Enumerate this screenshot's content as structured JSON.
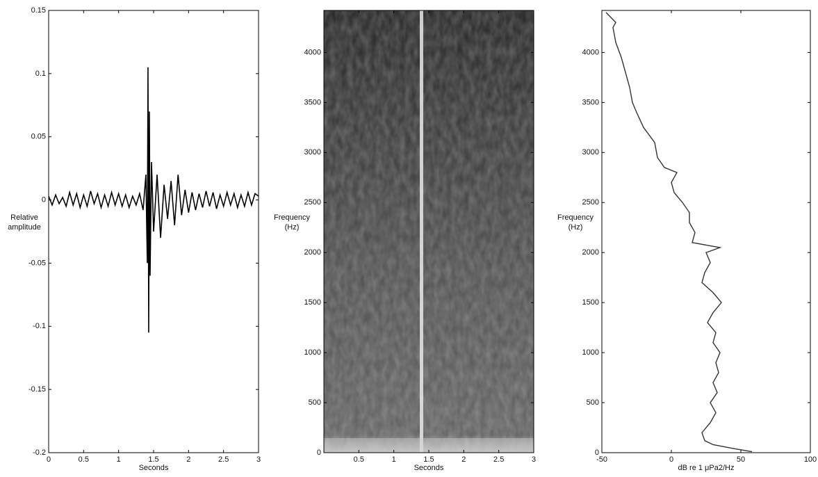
{
  "chart_data": [
    {
      "type": "line",
      "xlabel": "Seconds",
      "ylabel": [
        "Relative",
        "amplitude"
      ],
      "x": [
        0,
        0.05,
        0.1,
        0.15,
        0.2,
        0.25,
        0.3,
        0.35,
        0.4,
        0.45,
        0.5,
        0.55,
        0.6,
        0.65,
        0.7,
        0.75,
        0.8,
        0.85,
        0.9,
        0.95,
        1.0,
        1.05,
        1.1,
        1.15,
        1.2,
        1.25,
        1.3,
        1.35,
        1.39,
        1.41,
        1.42,
        1.43,
        1.44,
        1.45,
        1.47,
        1.5,
        1.55,
        1.6,
        1.65,
        1.7,
        1.75,
        1.8,
        1.85,
        1.9,
        1.95,
        2.0,
        2.05,
        2.1,
        2.15,
        2.2,
        2.25,
        2.3,
        2.35,
        2.4,
        2.45,
        2.5,
        2.55,
        2.6,
        2.65,
        2.7,
        2.75,
        2.8,
        2.85,
        2.9,
        2.95,
        3.0
      ],
      "values": [
        0.003,
        -0.004,
        0.004,
        -0.003,
        0.002,
        -0.005,
        0.006,
        -0.004,
        0.005,
        -0.006,
        0.004,
        -0.005,
        0.007,
        -0.003,
        0.005,
        -0.006,
        0.004,
        -0.005,
        0.006,
        -0.004,
        0.005,
        -0.005,
        0.004,
        -0.006,
        0.003,
        -0.004,
        0.005,
        -0.008,
        0.02,
        -0.05,
        0.105,
        -0.105,
        0.07,
        -0.06,
        0.03,
        -0.025,
        0.02,
        -0.03,
        0.012,
        -0.015,
        0.015,
        -0.02,
        0.02,
        -0.012,
        0.008,
        -0.01,
        0.006,
        -0.008,
        0.005,
        -0.006,
        0.007,
        -0.005,
        0.006,
        -0.007,
        0.004,
        -0.005,
        0.006,
        -0.004,
        0.005,
        -0.006,
        0.004,
        -0.005,
        0.006,
        -0.004,
        0.005,
        0.003
      ],
      "color": "#000000",
      "xlim": [
        0,
        3
      ],
      "xticks": [
        0,
        0.5,
        1,
        1.5,
        2,
        2.5,
        3
      ],
      "ylim": [
        -0.2,
        0.15
      ],
      "yticks": [
        -0.2,
        -0.15,
        -0.1,
        -0.05,
        0,
        0.05,
        0.1,
        0.15
      ]
    },
    {
      "type": "spectrogram",
      "xlabel": "Seconds",
      "ylabel": [
        "Frequency",
        "(Hz)"
      ],
      "xlim": [
        0,
        3
      ],
      "xticks": [
        0.5,
        1,
        1.5,
        2,
        2.5,
        3
      ],
      "ylim": [
        0,
        4420
      ],
      "yticks": [
        0,
        500,
        1000,
        1500,
        2000,
        2500,
        3000,
        3500,
        4000
      ]
    },
    {
      "type": "profile",
      "xlabel": "dB re 1 μPa2/Hz",
      "ylabel": [
        "Frequency",
        "(Hz)"
      ],
      "y": [
        10,
        40,
        80,
        120,
        200,
        300,
        400,
        500,
        600,
        700,
        800,
        900,
        1000,
        1100,
        1200,
        1300,
        1400,
        1500,
        1600,
        1700,
        1800,
        1900,
        2000,
        2050,
        2100,
        2200,
        2300,
        2400,
        2500,
        2600,
        2700,
        2800,
        2850,
        2950,
        3100,
        3250,
        3400,
        3500,
        3650,
        3800,
        3950,
        4100,
        4250,
        4300,
        4400
      ],
      "values": [
        58,
        45,
        30,
        24,
        22,
        28,
        32,
        28,
        33,
        30,
        34,
        32,
        35,
        30,
        32,
        26,
        30,
        36,
        30,
        22,
        24,
        28,
        25,
        35,
        15,
        17,
        13,
        13,
        8,
        2,
        0,
        4,
        -5,
        -10,
        -12,
        -20,
        -25,
        -28,
        -30,
        -33,
        -36,
        -40,
        -42,
        -40,
        -47
      ],
      "color": "#333333",
      "xlim": [
        -50,
        100
      ],
      "xticks": [
        -50,
        0,
        50,
        100
      ],
      "ylim": [
        0,
        4420
      ],
      "yticks": [
        0,
        500,
        1000,
        1500,
        2000,
        2500,
        3000,
        3500,
        4000
      ]
    }
  ]
}
